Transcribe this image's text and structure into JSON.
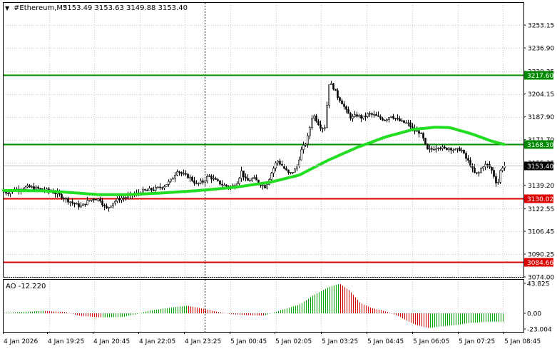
{
  "header": {
    "arrow": "▼",
    "symbol": "#Ethereum,M5",
    "ohlc": "3153.49 3153.63 3149.88 3153.40"
  },
  "colors": {
    "background": "#ffffff",
    "grid": "#c8c8c8",
    "candles": "#000000",
    "ma_line": "#22dd22",
    "support_line": "#dd0000",
    "resistance_line": "#008800",
    "ao_up": "#00a000",
    "ao_down": "#d00000"
  },
  "chart_data": [
    {
      "type": "candlestick",
      "title": "#Ethereum,M5",
      "ylim": [
        3074.0,
        3269.0
      ],
      "price_axis_labels": [
        "3253.15",
        "3236.90",
        "3220.35",
        "3204.15",
        "3187.90",
        "3171.70",
        "3155.35",
        "3139.20",
        "3122.55",
        "3106.45",
        "3090.25",
        "3074.00"
      ],
      "time_axis_labels": [
        "4 Jan 2026",
        "4 Jan 19:25",
        "4 Jan 20:45",
        "4 Jan 22:05",
        "4 Jan 23:25",
        "5 Jan 00:45",
        "5 Jan 02:05",
        "5 Jan 03:25",
        "5 Jan 04:45",
        "5 Jan 06:05",
        "5 Jan 07:25",
        "5 Jan 08:45"
      ],
      "current_price": "3153.40",
      "levels": [
        {
          "kind": "resistance",
          "value": "3217.60"
        },
        {
          "kind": "resistance",
          "value": "3168.30"
        },
        {
          "kind": "support",
          "value": "3130.02"
        },
        {
          "kind": "support",
          "value": "3084.66"
        }
      ],
      "close_path": [
        [
          0,
          3135
        ],
        [
          10,
          3134
        ],
        [
          20,
          3136
        ],
        [
          30,
          3137
        ],
        [
          40,
          3138
        ],
        [
          50,
          3137
        ],
        [
          60,
          3136
        ],
        [
          70,
          3135
        ],
        [
          80,
          3133
        ],
        [
          90,
          3130
        ],
        [
          100,
          3127
        ],
        [
          108,
          3125
        ],
        [
          114,
          3124
        ],
        [
          120,
          3127
        ],
        [
          130,
          3130
        ],
        [
          140,
          3129
        ],
        [
          148,
          3122
        ],
        [
          158,
          3127
        ],
        [
          168,
          3130
        ],
        [
          178,
          3131
        ],
        [
          190,
          3133
        ],
        [
          200,
          3135
        ],
        [
          210,
          3136
        ],
        [
          220,
          3137
        ],
        [
          230,
          3139
        ],
        [
          240,
          3143
        ],
        [
          248,
          3150
        ],
        [
          255,
          3147
        ],
        [
          265,
          3145
        ],
        [
          275,
          3140
        ],
        [
          285,
          3142
        ],
        [
          292,
          3146
        ],
        [
          300,
          3143
        ],
        [
          310,
          3140
        ],
        [
          320,
          3138
        ],
        [
          330,
          3139
        ],
        [
          338,
          3149
        ],
        [
          345,
          3142
        ],
        [
          355,
          3144
        ],
        [
          365,
          3140
        ],
        [
          372,
          3138
        ],
        [
          380,
          3148
        ],
        [
          388,
          3157
        ],
        [
          395,
          3153
        ],
        [
          405,
          3147
        ],
        [
          415,
          3151
        ],
        [
          422,
          3164
        ],
        [
          430,
          3171
        ],
        [
          438,
          3190
        ],
        [
          444,
          3185
        ],
        [
          450,
          3180
        ],
        [
          456,
          3181
        ],
        [
          460,
          3212
        ],
        [
          466,
          3210
        ],
        [
          472,
          3203
        ],
        [
          478,
          3199
        ],
        [
          485,
          3192
        ],
        [
          492,
          3187
        ],
        [
          500,
          3189
        ],
        [
          508,
          3187
        ],
        [
          516,
          3190
        ],
        [
          524,
          3189
        ],
        [
          532,
          3187
        ],
        [
          540,
          3186
        ],
        [
          548,
          3189
        ],
        [
          556,
          3186
        ],
        [
          564,
          3184
        ],
        [
          572,
          3183
        ],
        [
          580,
          3178
        ],
        [
          588,
          3177
        ],
        [
          594,
          3171
        ],
        [
          598,
          3164
        ],
        [
          606,
          3165
        ],
        [
          614,
          3167
        ],
        [
          622,
          3165
        ],
        [
          630,
          3166
        ],
        [
          638,
          3164
        ],
        [
          646,
          3165
        ],
        [
          652,
          3159
        ],
        [
          658,
          3155
        ],
        [
          664,
          3148
        ],
        [
          670,
          3147
        ],
        [
          676,
          3153
        ],
        [
          682,
          3154
        ],
        [
          688,
          3151
        ],
        [
          692,
          3146
        ],
        [
          697,
          3139
        ],
        [
          702,
          3152
        ],
        [
          707,
          3153
        ]
      ],
      "moving_average": [
        [
          0,
          3135.5
        ],
        [
          60,
          3135.3
        ],
        [
          100,
          3134.0
        ],
        [
          140,
          3132.5
        ],
        [
          180,
          3132.5
        ],
        [
          230,
          3133.8
        ],
        [
          280,
          3135.5
        ],
        [
          330,
          3137.8
        ],
        [
          380,
          3141.5
        ],
        [
          420,
          3146.5
        ],
        [
          460,
          3157.0
        ],
        [
          500,
          3166.0
        ],
        [
          540,
          3173.5
        ],
        [
          580,
          3179.0
        ],
        [
          610,
          3180.5
        ],
        [
          630,
          3180.3
        ],
        [
          660,
          3176.0
        ],
        [
          690,
          3170.5
        ],
        [
          707,
          3168.3
        ]
      ]
    },
    {
      "type": "bar",
      "title": "AO -12.220",
      "indicator": "AO",
      "ylim": [
        -23.004,
        43.825
      ],
      "axis_labels": [
        "43.825",
        "0.00",
        "-23.004"
      ],
      "path": [
        [
          3,
          0.5
        ],
        [
          30,
          2.0
        ],
        [
          60,
          3.5
        ],
        [
          90,
          2.0
        ],
        [
          110,
          -3.5
        ],
        [
          140,
          -6.0
        ],
        [
          170,
          -5.5
        ],
        [
          190,
          -1.5
        ],
        [
          210,
          4.0
        ],
        [
          240,
          8.5
        ],
        [
          262,
          11.0
        ],
        [
          285,
          6.5
        ],
        [
          305,
          2.0
        ],
        [
          325,
          -1.5
        ],
        [
          345,
          -2.5
        ],
        [
          370,
          -3.5
        ],
        [
          392,
          4.0
        ],
        [
          420,
          13.0
        ],
        [
          440,
          27.0
        ],
        [
          460,
          38.0
        ],
        [
          476,
          43.5
        ],
        [
          490,
          33.0
        ],
        [
          505,
          15.0
        ],
        [
          520,
          8.0
        ],
        [
          540,
          3.0
        ],
        [
          560,
          -5.0
        ],
        [
          580,
          -16.0
        ],
        [
          600,
          -21.5
        ],
        [
          620,
          -19.0
        ],
        [
          640,
          -17.0
        ],
        [
          660,
          -14.0
        ],
        [
          680,
          -12.5
        ],
        [
          707,
          -12.22
        ]
      ]
    }
  ]
}
